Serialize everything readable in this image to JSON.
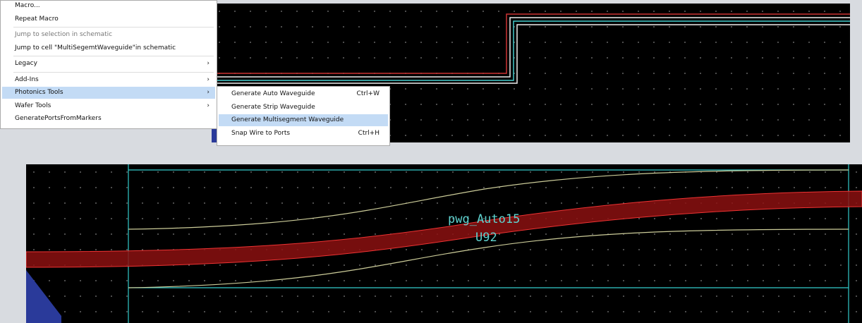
{
  "menu": {
    "items": [
      {
        "label": "Macro..."
      },
      {
        "label": "Repeat Macro",
        "separator_after": true
      },
      {
        "label": "Jump to selection in schematic",
        "disabled": true
      },
      {
        "label": "Jump to cell \"MultiSegemtWaveguide\"in schematic",
        "separator_after": true
      },
      {
        "label": "Legacy",
        "submenu": true,
        "separator_after": true
      },
      {
        "label": "Add-Ins",
        "submenu": true
      },
      {
        "label": "Photonics Tools",
        "submenu": true,
        "highlighted": true
      },
      {
        "label": "Wafer Tools",
        "submenu": true
      },
      {
        "label": "GeneratePortsFromMarkers"
      }
    ]
  },
  "submenu": {
    "items": [
      {
        "label": "Generate Auto Waveguide",
        "shortcut": "Ctrl+W"
      },
      {
        "label": "Generate Strip Waveguide"
      },
      {
        "label": "Generate Multisegment Waveguide",
        "highlighted": true
      },
      {
        "label": "Snap Wire to Ports",
        "shortcut": "Ctrl+H"
      }
    ]
  },
  "layout_view": {
    "cell_name": "pwg_Auto15",
    "instance": "U92"
  }
}
